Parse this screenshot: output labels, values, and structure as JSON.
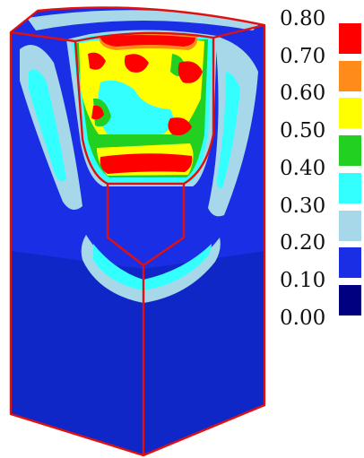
{
  "colorbar": {
    "ticks": [
      "0.80",
      "0.70",
      "0.60",
      "0.50",
      "0.40",
      "0.30",
      "0.20",
      "0.10",
      "0.00"
    ],
    "bands": [
      {
        "from": 0.7,
        "to": 0.8,
        "color": "#ff0000"
      },
      {
        "from": 0.6,
        "to": 0.7,
        "color": "#ff8c1a"
      },
      {
        "from": 0.5,
        "to": 0.6,
        "color": "#ffff00"
      },
      {
        "from": 0.4,
        "to": 0.5,
        "color": "#22d022"
      },
      {
        "from": 0.3,
        "to": 0.4,
        "color": "#33ffff"
      },
      {
        "from": 0.2,
        "to": 0.3,
        "color": "#a6d8ea"
      },
      {
        "from": 0.1,
        "to": 0.2,
        "color": "#1a2ee6"
      },
      {
        "from": 0.0,
        "to": 0.1,
        "color": "#000080"
      }
    ]
  },
  "colors": {
    "outline": "#e01010",
    "background_field": "#1a2ee6",
    "deep_field": "#1027c8",
    "light_blue": "#a6d8ea",
    "cyan": "#33ffff",
    "green": "#22d022",
    "yellow": "#ffff00",
    "orange": "#ff8c1a",
    "red": "#ff0000"
  }
}
